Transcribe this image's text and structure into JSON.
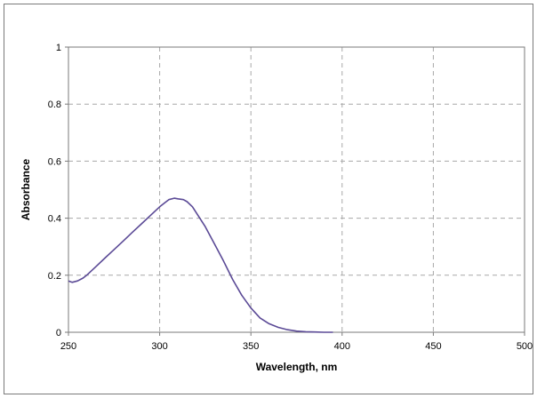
{
  "chart_data": {
    "type": "line",
    "xlabel": "Wavelength, nm",
    "ylabel": "Absorbance",
    "xlim": [
      250,
      500
    ],
    "ylim": [
      0,
      1
    ],
    "xticks": [
      250,
      300,
      350,
      400,
      450,
      500
    ],
    "yticks": [
      0,
      0.2,
      0.4,
      0.6,
      0.8,
      1
    ],
    "grid": true,
    "line_color": "#5b4a96",
    "series": [
      {
        "x": [
          250,
          252,
          255,
          258,
          260,
          265,
          270,
          275,
          280,
          285,
          290,
          295,
          300,
          303,
          305,
          308,
          310,
          313,
          315,
          318,
          320,
          325,
          330,
          335,
          340,
          345,
          350,
          355,
          360,
          365,
          370,
          375,
          380,
          385,
          390,
          395
        ],
        "y": [
          0.18,
          0.175,
          0.18,
          0.19,
          0.2,
          0.23,
          0.26,
          0.29,
          0.32,
          0.35,
          0.38,
          0.41,
          0.44,
          0.455,
          0.465,
          0.47,
          0.468,
          0.465,
          0.458,
          0.44,
          0.42,
          0.37,
          0.31,
          0.25,
          0.185,
          0.13,
          0.085,
          0.05,
          0.03,
          0.017,
          0.009,
          0.004,
          0.002,
          0.001,
          0.0,
          0.0
        ]
      }
    ]
  }
}
